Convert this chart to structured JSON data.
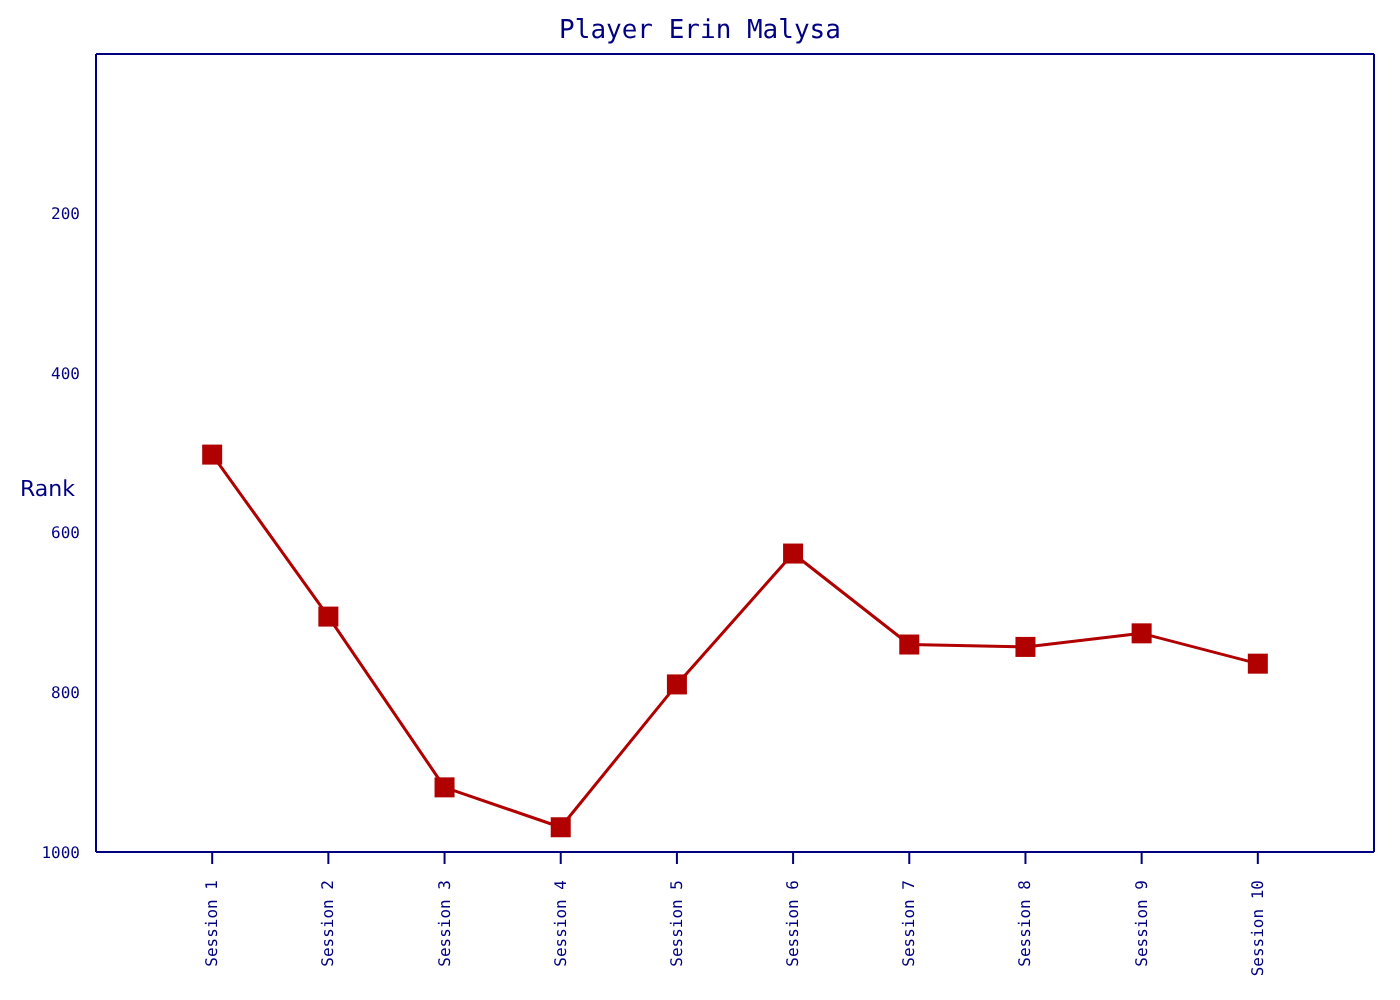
{
  "chart_data": {
    "type": "line",
    "title": "Player Erin Malysa",
    "ylabel": "Rank",
    "categories": [
      "Session 1",
      "Session 2",
      "Session 3",
      "Session 4",
      "Session 5",
      "Session 6",
      "Session 7",
      "Session 8",
      "Session 9",
      "Session 10"
    ],
    "series": [
      {
        "color": "#b00000",
        "values": [
          502,
          705,
          919,
          969,
          790,
          626,
          740,
          743,
          726,
          764
        ]
      }
    ],
    "ylim": [
      1000,
      0
    ],
    "yticks": [
      200,
      400,
      600,
      800,
      1000
    ],
    "marker": "square",
    "line_style": "solid",
    "grid": false,
    "legend": false
  }
}
